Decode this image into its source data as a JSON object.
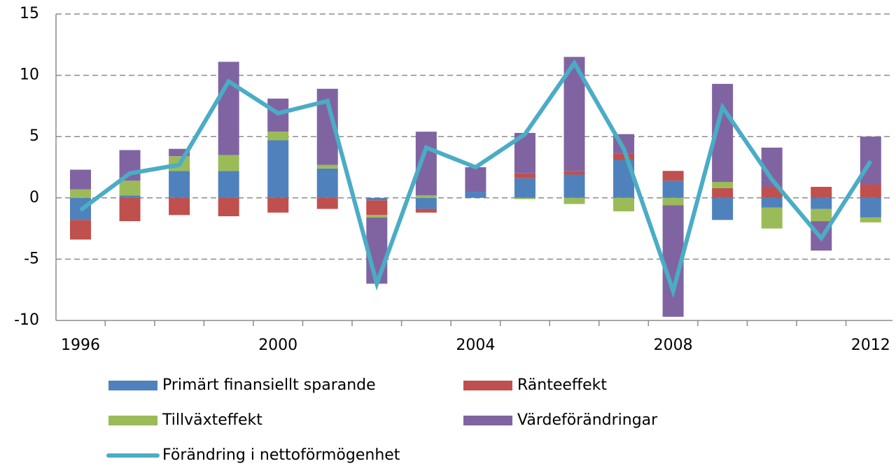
{
  "chart_data": {
    "type": "bar-line",
    "categories": [
      "1996",
      null,
      null,
      null,
      "2000",
      null,
      null,
      null,
      "2004",
      null,
      null,
      null,
      "2008",
      null,
      null,
      null,
      "2012"
    ],
    "ylim": [
      -10,
      15
    ],
    "yticks": [
      -10,
      -5,
      0,
      5,
      10,
      15
    ],
    "grid": true,
    "stacked": true,
    "legend": "bottom",
    "series": [
      {
        "name": "Primärt finansiellt sparande",
        "type": "bar",
        "color": "#4f81bd",
        "values": [
          -1.8,
          0.2,
          2.2,
          2.2,
          4.7,
          2.4,
          -0.2,
          -0.9,
          0.5,
          1.6,
          1.9,
          3.1,
          1.4,
          -1.8,
          -0.8,
          -0.9,
          -1.6
        ]
      },
      {
        "name": "Ränteeffekt",
        "type": "bar",
        "color": "#c0504d",
        "values": [
          -1.6,
          -1.9,
          -1.4,
          -1.5,
          -1.2,
          -0.9,
          -1.2,
          -0.3,
          0,
          0.4,
          0.3,
          0.5,
          0.8,
          0.8,
          0.9,
          0.9,
          1.1
        ]
      },
      {
        "name": "Tillväxteffekt",
        "type": "bar",
        "color": "#9bbb59",
        "values": [
          0.7,
          1.2,
          1.2,
          1.3,
          0.7,
          0.3,
          -0.2,
          0.2,
          0,
          -0.1,
          -0.5,
          -1.1,
          -0.6,
          0.5,
          -1.7,
          -1.0,
          -0.4
        ]
      },
      {
        "name": "Värdeförändringar",
        "type": "bar",
        "color": "#8064a2",
        "values": [
          1.6,
          2.5,
          0.6,
          7.6,
          2.7,
          6.2,
          -5.4,
          5.2,
          2.0,
          3.3,
          9.3,
          1.6,
          -9.1,
          8.0,
          3.2,
          -2.4,
          3.9
        ]
      },
      {
        "name": "Förändring i nettoförmögenhet",
        "type": "line",
        "color": "#4bacc6",
        "values": [
          -1.0,
          2.0,
          2.7,
          9.5,
          6.9,
          7.9,
          -7.0,
          4.1,
          2.5,
          5.2,
          11.0,
          4.0,
          -7.6,
          7.4,
          1.5,
          -3.3,
          3.0
        ]
      }
    ]
  }
}
